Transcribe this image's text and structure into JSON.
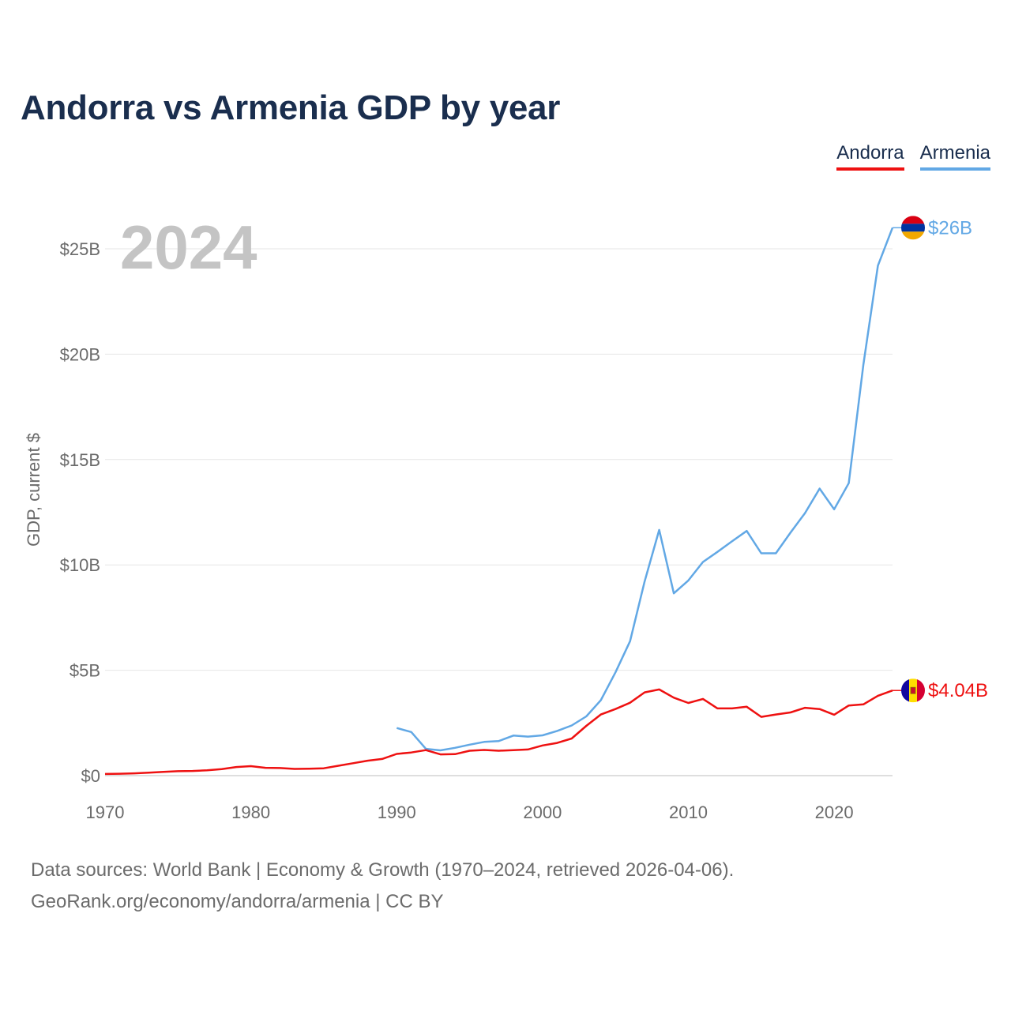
{
  "title": "Andorra vs Armenia GDP by year",
  "year_label": "2024",
  "legend": [
    {
      "name": "Andorra",
      "color": "#ee1111"
    },
    {
      "name": "Armenia",
      "color": "#62a8e5"
    }
  ],
  "source": {
    "line1": "Data sources: World Bank | Economy & Growth (1970–2024, retrieved 2026-04-06).",
    "line2": "GeoRank.org/economy/andorra/armenia | CC BY"
  },
  "chart_data": {
    "type": "line",
    "title": "Andorra vs Armenia GDP by year",
    "xlabel": "",
    "ylabel": "GDP, current $",
    "xlim": [
      1970,
      2024
    ],
    "ylim": [
      0,
      26
    ],
    "x_ticks": [
      1970,
      1980,
      1990,
      2000,
      2010,
      2020
    ],
    "y_ticks": [
      {
        "value": 0,
        "label": "$0"
      },
      {
        "value": 5,
        "label": "$5B"
      },
      {
        "value": 10,
        "label": "$10B"
      },
      {
        "value": 15,
        "label": "$15B"
      },
      {
        "value": 20,
        "label": "$20B"
      },
      {
        "value": 25,
        "label": "$25B"
      }
    ],
    "grid": true,
    "series": [
      {
        "name": "Armenia",
        "color": "#62a8e5",
        "end_label": "$26B",
        "x": [
          1990,
          1991,
          1992,
          1993,
          1994,
          1995,
          1996,
          1997,
          1998,
          1999,
          2000,
          2001,
          2002,
          2003,
          2004,
          2005,
          2006,
          2007,
          2008,
          2009,
          2010,
          2011,
          2012,
          2013,
          2014,
          2015,
          2016,
          2017,
          2018,
          2019,
          2020,
          2021,
          2022,
          2023,
          2024
        ],
        "values": [
          2.26,
          2.07,
          1.27,
          1.2,
          1.32,
          1.47,
          1.6,
          1.64,
          1.9,
          1.85,
          1.91,
          2.12,
          2.38,
          2.81,
          3.58,
          4.9,
          6.38,
          9.21,
          11.66,
          8.65,
          9.26,
          10.14,
          10.62,
          11.12,
          11.61,
          10.55,
          10.55,
          11.53,
          12.46,
          13.62,
          12.64,
          13.88,
          19.5,
          24.2,
          26.0
        ]
      },
      {
        "name": "Andorra",
        "color": "#ee1111",
        "end_label": "$4.04B",
        "x": [
          1970,
          1971,
          1972,
          1973,
          1974,
          1975,
          1976,
          1977,
          1978,
          1979,
          1980,
          1981,
          1982,
          1983,
          1984,
          1985,
          1986,
          1987,
          1988,
          1989,
          1990,
          1991,
          1992,
          1993,
          1994,
          1995,
          1996,
          1997,
          1998,
          1999,
          2000,
          2001,
          2002,
          2003,
          2004,
          2005,
          2006,
          2007,
          2008,
          2009,
          2010,
          2011,
          2012,
          2013,
          2014,
          2015,
          2016,
          2017,
          2018,
          2019,
          2020,
          2021,
          2022,
          2023,
          2024
        ],
        "values": [
          0.08,
          0.09,
          0.11,
          0.14,
          0.18,
          0.21,
          0.22,
          0.25,
          0.31,
          0.41,
          0.45,
          0.37,
          0.36,
          0.32,
          0.33,
          0.35,
          0.47,
          0.59,
          0.71,
          0.79,
          1.03,
          1.1,
          1.21,
          1.01,
          1.02,
          1.18,
          1.22,
          1.18,
          1.21,
          1.24,
          1.43,
          1.55,
          1.76,
          2.36,
          2.9,
          3.16,
          3.46,
          3.95,
          4.09,
          3.7,
          3.45,
          3.64,
          3.19,
          3.19,
          3.27,
          2.79,
          2.9,
          3.0,
          3.22,
          3.16,
          2.89,
          3.33,
          3.38,
          3.79,
          4.04
        ]
      }
    ]
  }
}
